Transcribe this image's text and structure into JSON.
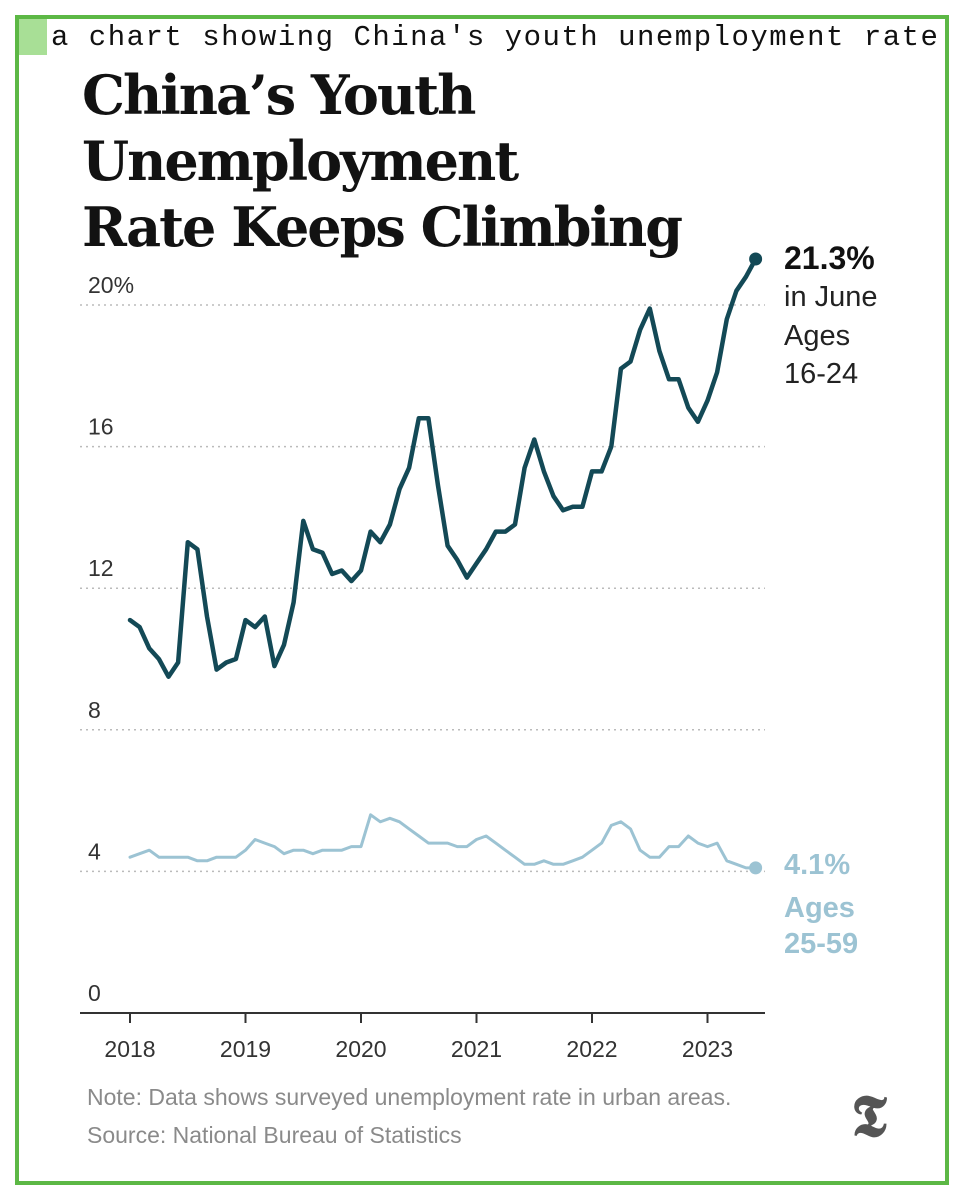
{
  "caption": "a chart showing China's youth unemployment rate",
  "headline": {
    "line1": "China’s Youth Unemployment",
    "line2": "Rate Keeps Climbing"
  },
  "colors": {
    "youth": "#134956",
    "adult": "#9cc3d3",
    "frame": "#5cb845",
    "grid": "#bbbbbb"
  },
  "chart_data": {
    "type": "line",
    "title": "China’s Youth Unemployment Rate Keeps Climbing",
    "xlabel": "",
    "ylabel": "",
    "x_ticks": [
      "2018",
      "2019",
      "2020",
      "2021",
      "2022",
      "2023"
    ],
    "y_ticks": [
      "20%",
      "16",
      "12",
      "8",
      "4",
      "0"
    ],
    "ylim": [
      0,
      22
    ],
    "grid": "horizontal dotted",
    "x_start": "2018-01",
    "x_end": "2023-06",
    "series": [
      {
        "name": "Ages 16-24",
        "color": "#134956",
        "values": [
          11.1,
          10.9,
          10.3,
          10.0,
          9.5,
          9.9,
          13.3,
          13.1,
          11.2,
          9.7,
          9.9,
          10.0,
          11.1,
          10.9,
          11.2,
          9.8,
          10.4,
          11.6,
          13.9,
          13.1,
          13.0,
          12.4,
          12.5,
          12.2,
          12.5,
          13.6,
          13.3,
          13.8,
          14.8,
          15.4,
          16.8,
          16.8,
          14.9,
          13.2,
          12.8,
          12.3,
          12.7,
          13.1,
          13.6,
          13.6,
          13.8,
          15.4,
          16.2,
          15.3,
          14.6,
          14.2,
          14.3,
          14.3,
          15.3,
          15.3,
          16.0,
          18.2,
          18.4,
          19.3,
          19.9,
          18.7,
          17.9,
          17.9,
          17.1,
          16.7,
          17.3,
          18.1,
          19.6,
          20.4,
          20.8,
          21.3
        ]
      },
      {
        "name": "Ages 25-59",
        "color": "#9cc3d3",
        "values": [
          4.4,
          4.5,
          4.6,
          4.4,
          4.4,
          4.4,
          4.4,
          4.3,
          4.3,
          4.4,
          4.4,
          4.4,
          4.6,
          4.9,
          4.8,
          4.7,
          4.5,
          4.6,
          4.6,
          4.5,
          4.6,
          4.6,
          4.6,
          4.7,
          4.7,
          5.6,
          5.4,
          5.5,
          5.4,
          5.2,
          5.0,
          4.8,
          4.8,
          4.8,
          4.7,
          4.7,
          4.9,
          5.0,
          4.8,
          4.6,
          4.4,
          4.2,
          4.2,
          4.3,
          4.2,
          4.2,
          4.3,
          4.4,
          4.6,
          4.8,
          5.3,
          5.4,
          5.2,
          4.6,
          4.4,
          4.4,
          4.7,
          4.7,
          5.0,
          4.8,
          4.7,
          4.8,
          4.3,
          4.2,
          4.1,
          4.1
        ]
      }
    ],
    "annotations": {
      "youth": {
        "value": "21.3%",
        "line1": "in June",
        "line2": "Ages",
        "line3": "16-24"
      },
      "adult": {
        "value": "4.1%",
        "line1": "Ages",
        "line2": "25-59"
      }
    }
  },
  "notes": {
    "note": "Note: Data shows surveyed unemployment rate in urban areas.",
    "source": "Source: National Bureau of Statistics"
  },
  "logo": {
    "glyph": "𝕿",
    "icon": "nyt-logo-icon"
  }
}
